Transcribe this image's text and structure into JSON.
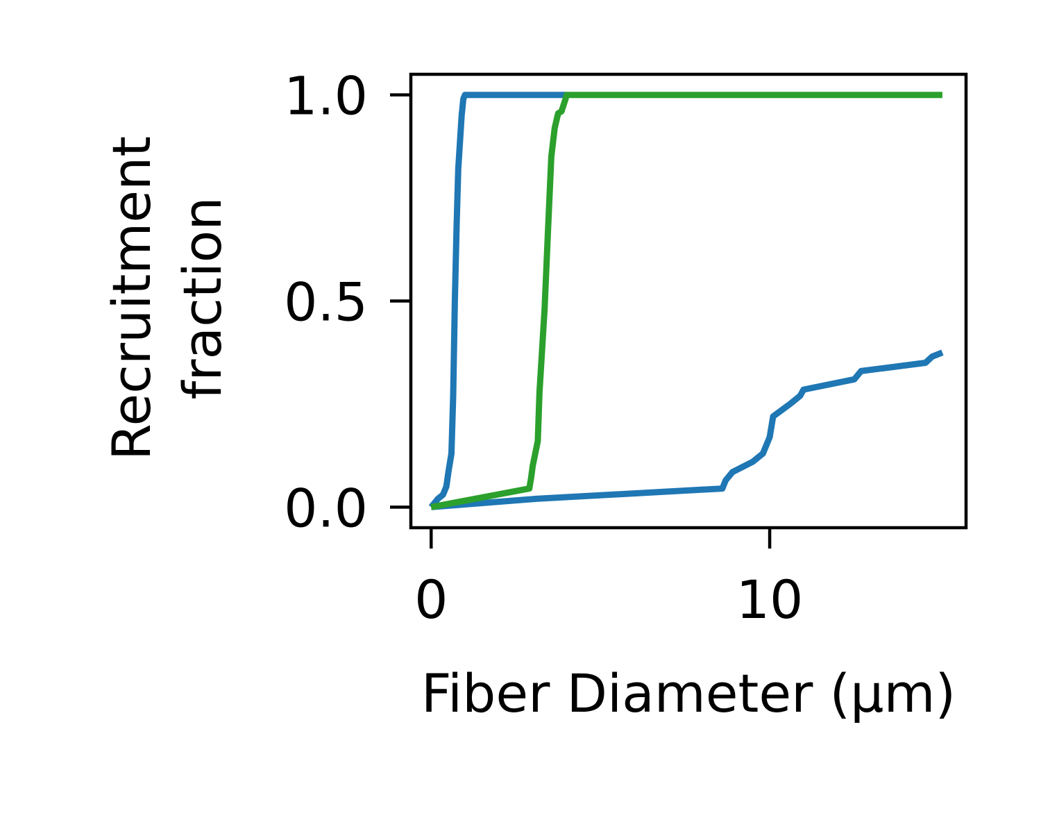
{
  "chart_data": {
    "type": "line",
    "title": "",
    "xlabel": "Fiber Diameter (μm)",
    "ylabel_lines": [
      "Recruitment",
      "fraction"
    ],
    "xlim": [
      -0.6,
      15.8
    ],
    "ylim": [
      -0.05,
      1.05
    ],
    "x_ticks": [
      0,
      10
    ],
    "x_tick_labels": [
      "0",
      "10"
    ],
    "y_ticks": [
      0.0,
      0.5,
      1.0
    ],
    "y_tick_labels": [
      "0.0",
      "0.5",
      "1.0"
    ],
    "grid": false,
    "legend": false,
    "series": [
      {
        "color": "#1f77b4",
        "x": [
          0.0,
          0.2,
          0.35,
          0.45,
          0.5,
          0.52,
          0.6,
          0.65,
          0.7,
          0.75,
          0.8,
          0.9,
          0.95,
          1.0,
          1.3,
          2.0,
          4.0
        ],
        "y": [
          0.0,
          0.02,
          0.03,
          0.05,
          0.08,
          0.09,
          0.13,
          0.27,
          0.5,
          0.68,
          0.82,
          0.95,
          0.99,
          1.0,
          1.0,
          1.0,
          1.0
        ]
      },
      {
        "color": "#1f77b4",
        "x": [
          0.0,
          3.1,
          8.6,
          8.7,
          8.9,
          9.5,
          9.8,
          10.0,
          10.1,
          10.6,
          10.9,
          11.0,
          12.5,
          12.7,
          14.6,
          14.8,
          15.1
        ],
        "y": [
          0.0,
          0.02,
          0.045,
          0.065,
          0.085,
          0.11,
          0.13,
          0.17,
          0.22,
          0.25,
          0.27,
          0.285,
          0.31,
          0.33,
          0.35,
          0.365,
          0.375
        ]
      },
      {
        "color": "#2ca02c",
        "x": [
          0.0,
          2.9,
          2.95,
          3.0,
          3.15,
          3.2,
          3.35,
          3.45,
          3.55,
          3.65,
          3.75,
          3.85,
          3.97,
          4.0,
          15.1
        ],
        "y": [
          0.0,
          0.045,
          0.07,
          0.1,
          0.16,
          0.28,
          0.48,
          0.67,
          0.85,
          0.92,
          0.955,
          0.96,
          0.99,
          1.0,
          1.0
        ]
      }
    ]
  }
}
